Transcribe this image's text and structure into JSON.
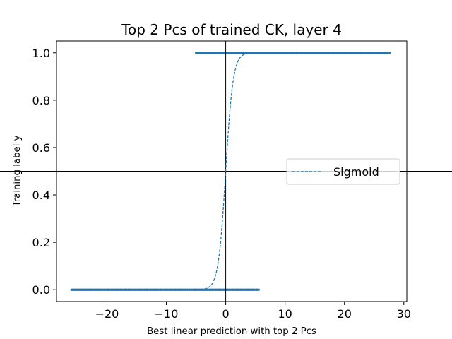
{
  "chart_data": {
    "type": "scatter",
    "title": "Top 2 Pcs of trained CK, layer 4",
    "xlabel": "Best linear prediction with top 2 Pcs",
    "ylabel": "Training label y",
    "xlim": [
      -28.5,
      30.5
    ],
    "ylim": [
      -0.05,
      1.05
    ],
    "xticks": [
      -20,
      -10,
      0,
      10,
      20,
      30
    ],
    "xtick_labels": [
      "−20",
      "−10",
      "0",
      "10",
      "20",
      "30"
    ],
    "yticks": [
      0.0,
      0.2,
      0.4,
      0.6,
      0.8,
      1.0
    ],
    "ytick_labels": [
      "0.0",
      "0.2",
      "0.4",
      "0.6",
      "0.8",
      "1.0"
    ],
    "reference_lines": {
      "vertical_x": 0,
      "horizontal_y": 0.5
    },
    "series": [
      {
        "kind": "scatter",
        "label_group": "y=0",
        "y": 0,
        "x_range": [
          -26,
          5.6
        ],
        "color": "#1f77b4"
      },
      {
        "kind": "scatter",
        "label_group": "y=1",
        "y": 1,
        "x_range": [
          -5,
          27.6
        ],
        "color": "#1f77b4"
      },
      {
        "kind": "line",
        "name": "Sigmoid",
        "function": "sigmoid",
        "x_range": [
          -5,
          5
        ],
        "style": "dashed",
        "color": "#1f77b4"
      }
    ],
    "legend": {
      "placement": "center-right",
      "entries": [
        "Sigmoid"
      ]
    },
    "grid": false
  }
}
